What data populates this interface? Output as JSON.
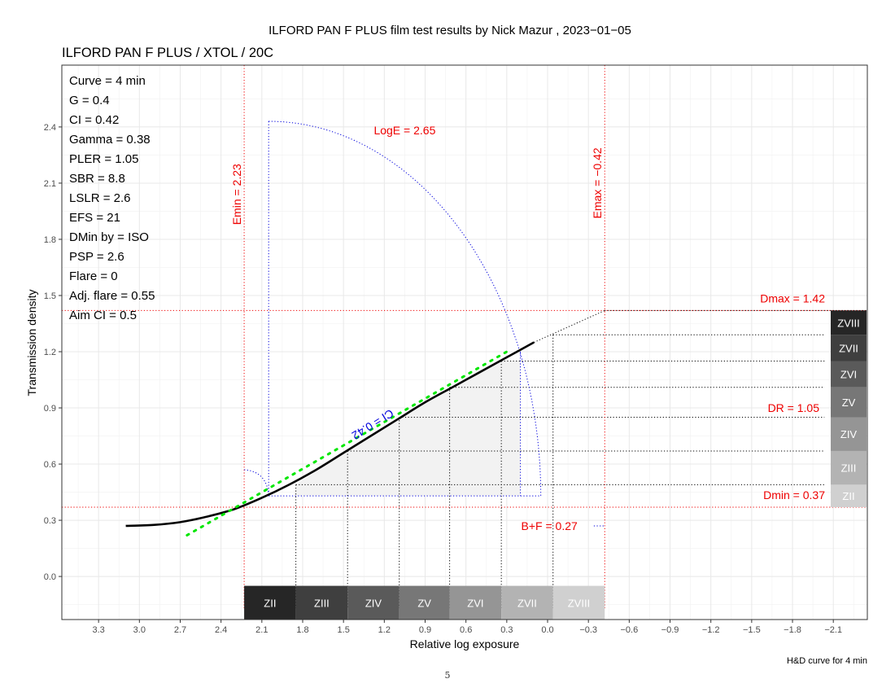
{
  "header": {
    "title": "ILFORD PAN F PLUS film test results by Nick Mazur , 2023−01−05",
    "subtitle": "ILFORD PAN F PLUS / XTOL / 20C",
    "caption": "H&D curve for 4 min",
    "page_number": "5"
  },
  "colors": {
    "curve": "#000000",
    "fit": "#00e600",
    "annot_red": "#ee0000",
    "annot_blue": "#0000dd",
    "grid": "#e8e8e8",
    "panel_border": "#333333",
    "shade": "#f2f2f2"
  },
  "stats": [
    "Curve =  4 min",
    "G =  0.4",
    "CI =  0.42",
    "Gamma =  0.38",
    "PLER =  1.05",
    "SBR =  8.8",
    "LSLR =  2.6",
    "EFS = 21",
    "DMin by = ISO",
    "PSP = 2.6",
    "Flare = 0",
    "Adj. flare = 0.55",
    "Aim CI =  0.5"
  ],
  "chart_data": {
    "type": "line",
    "title": "ILFORD PAN F PLUS / XTOL / 20C",
    "xlabel": "Relative log exposure",
    "ylabel": "Transmission density",
    "x_reversed": true,
    "xlim": [
      3.57,
      -2.35
    ],
    "ylim": [
      -0.23,
      2.73
    ],
    "x_ticks": [
      3.3,
      3.0,
      2.7,
      2.4,
      2.1,
      1.8,
      1.5,
      1.2,
      0.9,
      0.6,
      0.3,
      0.0,
      -0.3,
      -0.6,
      -0.9,
      -1.2,
      -1.5,
      -1.8,
      -2.1
    ],
    "x_tick_labels": [
      "3.3",
      "3.0",
      "2.7",
      "2.4",
      "2.1",
      "1.8",
      "1.5",
      "1.2",
      "0.9",
      "0.6",
      "0.3",
      "0.0",
      "−0.3",
      "−0.6",
      "−0.9",
      "−1.2",
      "−1.5",
      "−1.8",
      "−2.1"
    ],
    "y_ticks": [
      0.0,
      0.3,
      0.6,
      0.9,
      1.2,
      1.5,
      1.8,
      2.1,
      2.4
    ],
    "y_tick_labels": [
      "0.0",
      "0.3",
      "0.6",
      "0.9",
      "1.2",
      "1.5",
      "1.8",
      "2.1",
      "2.4"
    ],
    "grid": true,
    "series": [
      {
        "kind": "curve",
        "x": [
          3.1,
          2.9,
          2.7,
          2.5,
          2.3,
          2.1,
          1.9,
          1.7,
          1.5,
          1.3,
          1.1,
          0.9,
          0.7,
          0.5,
          0.3,
          0.1
        ],
        "y": [
          0.27,
          0.275,
          0.29,
          0.32,
          0.36,
          0.42,
          0.49,
          0.57,
          0.66,
          0.75,
          0.84,
          0.93,
          1.01,
          1.09,
          1.17,
          1.25
        ]
      },
      {
        "kind": "fit",
        "x": [
          2.65,
          0.3
        ],
        "y": [
          0.22,
          1.2
        ]
      }
    ],
    "extrapolation": {
      "x": [
        0.1,
        -0.42
      ],
      "y": [
        1.25,
        1.42
      ]
    },
    "annotations": {
      "emin": {
        "x": 2.23,
        "label": "Emin = 2.23"
      },
      "emax": {
        "x": -0.42,
        "label": "Emax = −0.42"
      },
      "dmax": {
        "y": 1.42,
        "label": "Dmax = 1.42"
      },
      "dmin": {
        "y": 0.37,
        "label": "Dmin = 0.37"
      },
      "dr": {
        "label": "DR = 1.05"
      },
      "loge": {
        "label": "LogE =  2.65"
      },
      "bf": {
        "label": "B+F =  0.27"
      },
      "ci": {
        "label": "CI = 0.42"
      }
    },
    "ci_box": {
      "x_left": 2.05,
      "x_right": 0.05,
      "y_bottom": 0.43,
      "y_top": 2.43
    },
    "zone_points": {
      "x": [
        1.85,
        1.47,
        1.09,
        0.72,
        0.34,
        -0.04
      ],
      "y": [
        0.49,
        0.67,
        0.85,
        1.01,
        1.15,
        1.29
      ]
    },
    "x_zones": [
      {
        "label": "ZII",
        "x0": 2.23,
        "x1": 1.85,
        "fill": "#262626"
      },
      {
        "label": "ZIII",
        "x0": 1.85,
        "x1": 1.47,
        "fill": "#3f3f3f"
      },
      {
        "label": "ZIV",
        "x0": 1.47,
        "x1": 1.09,
        "fill": "#5a5a5a"
      },
      {
        "label": "ZV",
        "x0": 1.09,
        "x1": 0.72,
        "fill": "#777777"
      },
      {
        "label": "ZVI",
        "x0": 0.72,
        "x1": 0.34,
        "fill": "#959595"
      },
      {
        "label": "ZVII",
        "x0": 0.34,
        "x1": -0.04,
        "fill": "#b3b3b3"
      },
      {
        "label": "ZVIII",
        "x0": -0.04,
        "x1": -0.42,
        "fill": "#d0d0d0"
      }
    ],
    "y_zones": [
      {
        "label": "ZII",
        "y0": 0.37,
        "y1": 0.49,
        "fill": "#d0d0d0"
      },
      {
        "label": "ZIII",
        "y0": 0.49,
        "y1": 0.67,
        "fill": "#b3b3b3"
      },
      {
        "label": "ZIV",
        "y0": 0.67,
        "y1": 0.85,
        "fill": "#959595"
      },
      {
        "label": "ZV",
        "y0": 0.85,
        "y1": 1.01,
        "fill": "#777777"
      },
      {
        "label": "ZVI",
        "y0": 1.01,
        "y1": 1.15,
        "fill": "#5a5a5a"
      },
      {
        "label": "ZVII",
        "y0": 1.15,
        "y1": 1.29,
        "fill": "#3f3f3f"
      },
      {
        "label": "ZVIII",
        "y0": 1.29,
        "y1": 1.42,
        "fill": "#262626"
      }
    ]
  }
}
